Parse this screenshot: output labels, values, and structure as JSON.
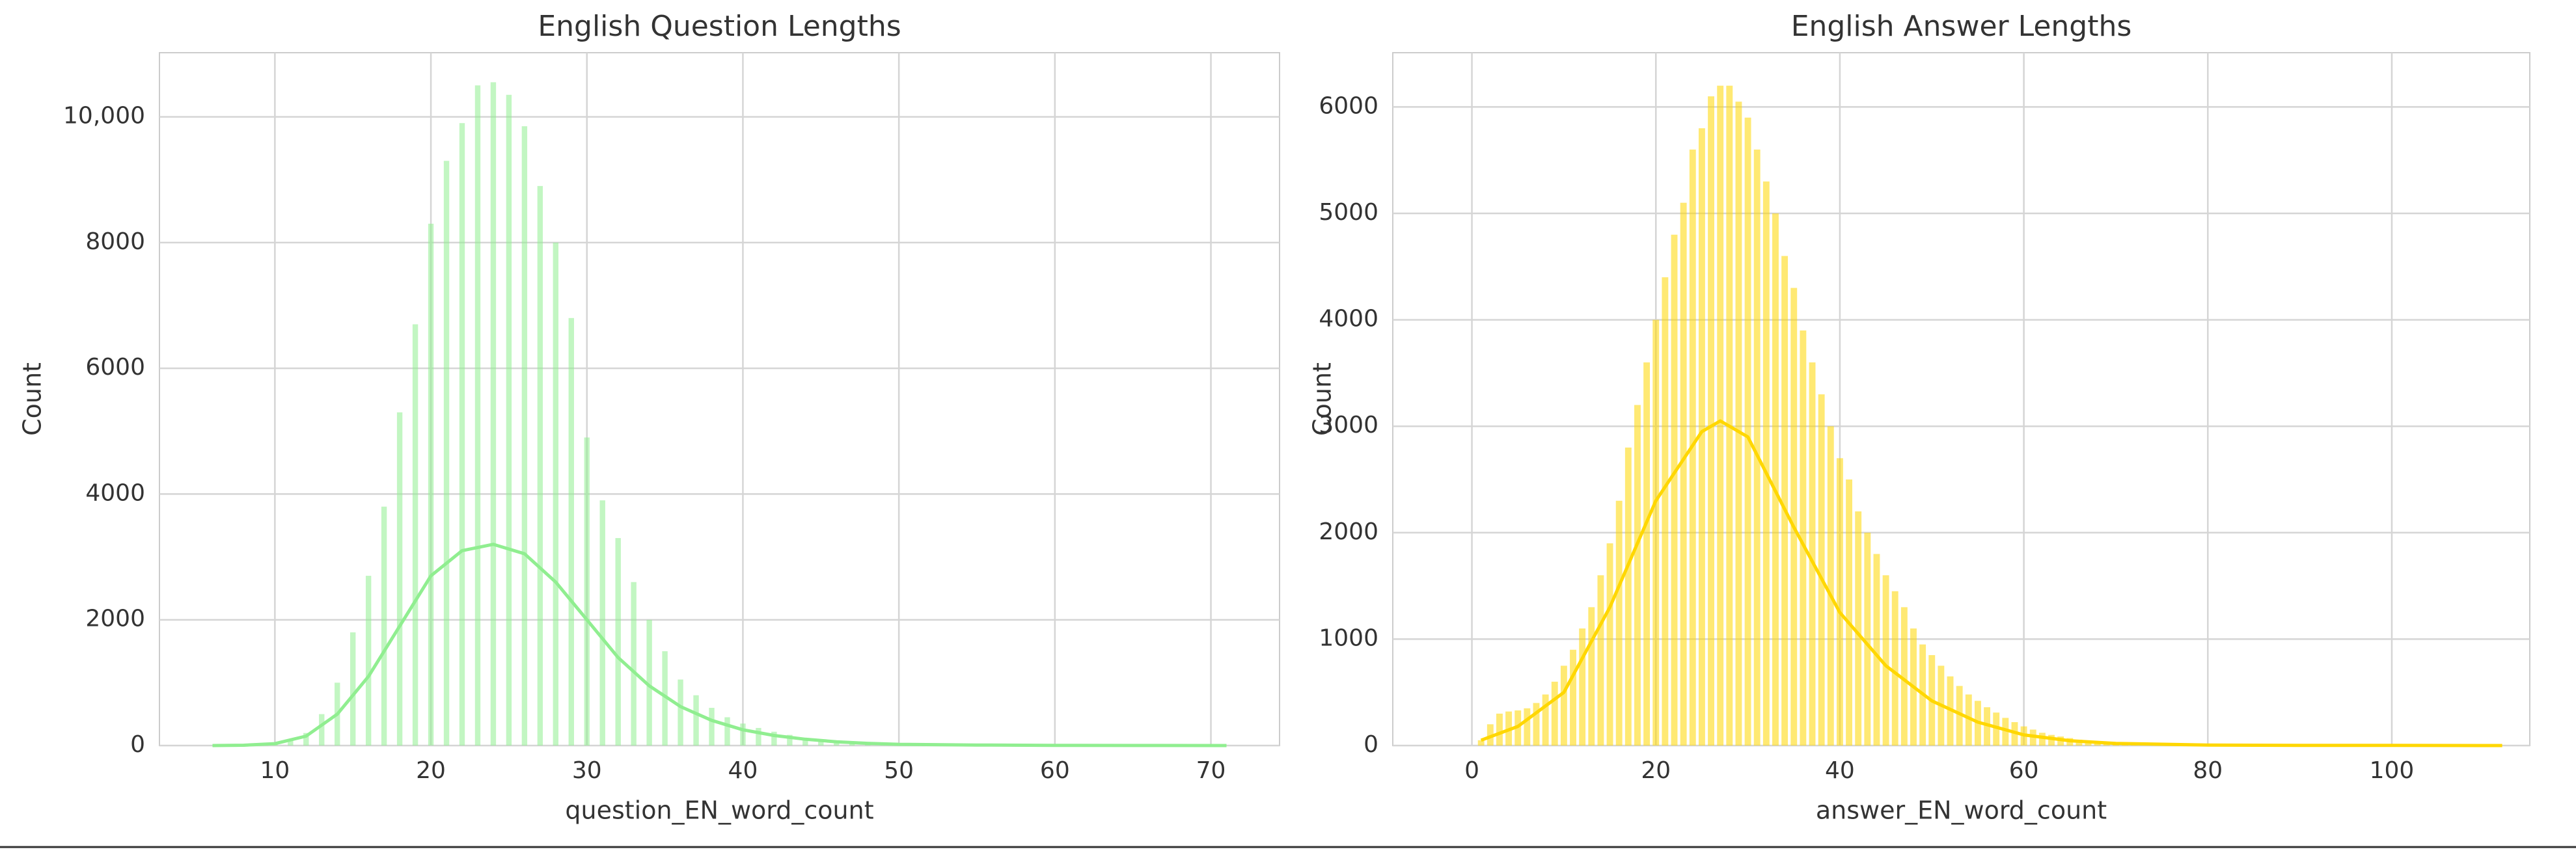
{
  "chart_data": [
    {
      "type": "histogram",
      "title": "English Question Lengths",
      "xlabel": "question_EN_word_count",
      "ylabel": "Count",
      "color": "#90ee90",
      "grid": true,
      "xlim": [
        2.6,
        74.4
      ],
      "xticks": [
        10,
        20,
        30,
        40,
        50,
        60,
        70
      ],
      "ylim": [
        0,
        11020
      ],
      "yticks": [
        0,
        2000,
        4000,
        6000,
        8000,
        {
          "value": 10000,
          "label": "10,000"
        }
      ],
      "x": [
        6,
        7,
        8,
        9,
        10,
        11,
        12,
        13,
        14,
        15,
        16,
        17,
        18,
        19,
        20,
        21,
        22,
        23,
        24,
        25,
        26,
        27,
        28,
        29,
        30,
        31,
        32,
        33,
        34,
        35,
        36,
        37,
        38,
        39,
        40,
        41,
        42,
        43,
        44,
        45,
        46,
        47,
        48,
        49,
        50,
        51,
        52,
        53,
        54,
        55,
        56,
        57,
        58,
        59,
        60,
        61,
        62,
        63,
        64,
        65,
        66,
        67,
        68,
        69,
        70,
        71
      ],
      "values": [
        3,
        5,
        8,
        15,
        30,
        80,
        200,
        500,
        1000,
        1800,
        2700,
        3800,
        5300,
        6700,
        8300,
        9300,
        9900,
        10500,
        10550,
        10350,
        9850,
        8900,
        8000,
        6800,
        4900,
        3900,
        3300,
        2600,
        2000,
        1500,
        1050,
        800,
        600,
        450,
        350,
        280,
        220,
        170,
        120,
        90,
        70,
        55,
        40,
        30,
        22,
        16,
        12,
        10,
        8,
        6,
        5,
        4,
        3,
        3,
        2,
        2,
        2,
        1,
        1,
        1,
        1,
        1,
        1,
        1,
        1,
        1
      ],
      "kde": {
        "x": [
          6,
          8,
          10,
          12,
          14,
          16,
          18,
          20,
          22,
          24,
          26,
          28,
          30,
          32,
          34,
          36,
          38,
          40,
          42,
          44,
          46,
          48,
          50,
          55,
          60,
          65,
          71
        ],
        "values": [
          0,
          5,
          30,
          150,
          500,
          1100,
          1900,
          2700,
          3100,
          3200,
          3050,
          2600,
          2000,
          1400,
          950,
          620,
          400,
          250,
          160,
          100,
          60,
          35,
          20,
          8,
          3,
          1,
          0
        ]
      }
    },
    {
      "type": "histogram",
      "title": "English Answer Lengths",
      "xlabel": "answer_EN_word_count",
      "ylabel": "Count",
      "color": "#ffd700",
      "grid": true,
      "xlim": [
        -8.6,
        115
      ],
      "xticks": [
        0,
        20,
        40,
        60,
        80,
        100
      ],
      "ylim": [
        0,
        6510
      ],
      "yticks": [
        0,
        1000,
        2000,
        3000,
        4000,
        5000,
        6000
      ],
      "x": [
        1,
        2,
        3,
        4,
        5,
        6,
        7,
        8,
        9,
        10,
        11,
        12,
        13,
        14,
        15,
        16,
        17,
        18,
        19,
        20,
        21,
        22,
        23,
        24,
        25,
        26,
        27,
        28,
        29,
        30,
        31,
        32,
        33,
        34,
        35,
        36,
        37,
        38,
        39,
        40,
        41,
        42,
        43,
        44,
        45,
        46,
        47,
        48,
        49,
        50,
        51,
        52,
        53,
        54,
        55,
        56,
        57,
        58,
        59,
        60,
        61,
        62,
        63,
        64,
        65,
        66,
        67,
        68,
        69,
        70,
        71,
        72,
        73,
        74,
        75,
        76,
        77,
        78,
        79,
        80,
        81,
        82,
        83,
        84,
        85,
        86,
        87,
        88,
        89,
        90,
        91,
        92,
        93,
        94,
        95,
        96,
        97,
        98,
        99,
        100,
        101,
        102,
        103,
        104,
        105,
        106,
        107,
        108,
        109,
        110,
        111,
        112
      ],
      "values": [
        50,
        200,
        300,
        320,
        330,
        350,
        400,
        480,
        600,
        750,
        900,
        1100,
        1300,
        1600,
        1900,
        2300,
        2800,
        3200,
        3600,
        4000,
        4400,
        4800,
        5100,
        5600,
        5800,
        6100,
        6200,
        6200,
        6050,
        5900,
        5600,
        5300,
        5000,
        4600,
        4300,
        3900,
        3600,
        3300,
        3000,
        2700,
        2500,
        2200,
        2000,
        1800,
        1600,
        1450,
        1300,
        1100,
        950,
        850,
        750,
        650,
        560,
        480,
        420,
        360,
        310,
        260,
        220,
        180,
        150,
        120,
        100,
        85,
        70,
        55,
        45,
        35,
        28,
        22,
        18,
        15,
        12,
        10,
        8,
        7,
        6,
        5,
        4,
        4,
        3,
        3,
        2,
        2,
        2,
        2,
        1,
        1,
        1,
        1,
        1,
        1,
        1,
        1,
        1,
        1,
        1,
        1,
        1,
        1,
        1,
        1,
        1,
        1,
        1,
        1,
        1,
        1,
        1,
        1,
        1,
        1
      ],
      "kde": {
        "x": [
          1,
          5,
          10,
          15,
          20,
          25,
          27,
          30,
          35,
          40,
          45,
          50,
          55,
          60,
          65,
          70,
          80,
          90,
          100,
          112
        ],
        "values": [
          50,
          180,
          500,
          1300,
          2300,
          2950,
          3050,
          2900,
          2050,
          1250,
          750,
          420,
          220,
          100,
          45,
          20,
          5,
          2,
          1,
          0
        ]
      }
    }
  ]
}
